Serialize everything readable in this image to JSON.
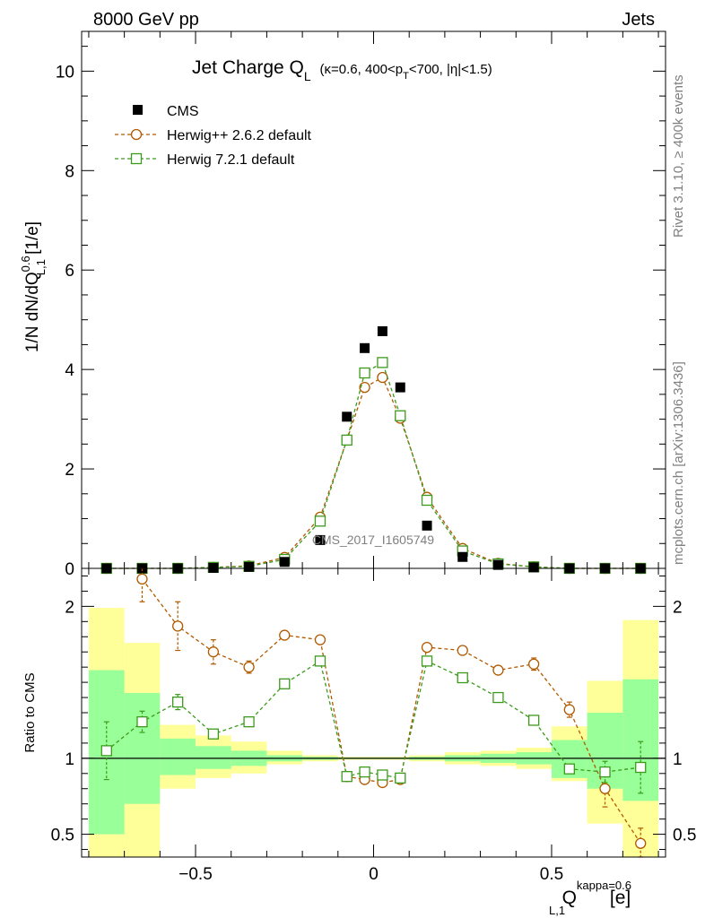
{
  "header": {
    "left_label": "8000 GeV pp",
    "right_label": "Jets"
  },
  "side_labels": {
    "rivet": "Rivet 3.1.10, ≥ 400k events",
    "mcplots": "mcplots.cern.ch [arXiv:1306.3436]"
  },
  "watermark": "CMS_2017_I1605749",
  "chart_data": [
    {
      "type": "scatter",
      "panel": "main",
      "title": "Jet Charge Q",
      "title_sub": "L",
      "title_detail_parts": [
        "(κ=0.6, 400<p",
        "T",
        "<700, |η|<1.5)"
      ],
      "ylabel_parts": [
        "1/N dN/dQ",
        "0.6",
        "L,1",
        " [1/e]"
      ],
      "xlim": [
        -0.82,
        0.82
      ],
      "ylim": [
        0,
        10.8
      ],
      "yticks": [
        0,
        2,
        4,
        6,
        8,
        10
      ],
      "ytick_labels": [
        "0",
        "2",
        "4",
        "6",
        "8",
        "10"
      ],
      "x": [
        -0.75,
        -0.65,
        -0.55,
        -0.45,
        -0.35,
        -0.25,
        -0.15,
        -0.075,
        -0.025,
        0.025,
        0.075,
        0.15,
        0.25,
        0.35,
        0.45,
        0.55,
        0.65,
        0.75
      ],
      "series": [
        {
          "name": "CMS",
          "marker": "filled-square",
          "color": "#000000",
          "values": [
            0.0,
            0.0,
            0.0,
            0.01,
            0.03,
            0.13,
            0.57,
            3.05,
            4.43,
            4.77,
            3.64,
            0.86,
            0.23,
            0.07,
            0.02,
            0.0,
            0.0,
            0.0
          ]
        },
        {
          "name": "Herwig++ 2.6.2 default",
          "marker": "open-circle",
          "color": "#b05a00",
          "line": "dashed",
          "values": [
            0.0,
            0.0,
            0.0,
            0.02,
            0.05,
            0.22,
            1.03,
            2.58,
            3.64,
            3.84,
            3.02,
            1.43,
            0.4,
            0.1,
            0.03,
            0.0,
            0.0,
            0.0
          ]
        },
        {
          "name": "Herwig 7.2.1 default",
          "marker": "open-square",
          "color": "#3c9a1c",
          "line": "dashed",
          "values": [
            0.0,
            0.0,
            0.0,
            0.02,
            0.04,
            0.18,
            0.95,
            2.58,
            3.93,
            4.14,
            3.07,
            1.37,
            0.35,
            0.09,
            0.03,
            0.0,
            0.0,
            0.0
          ]
        }
      ]
    },
    {
      "type": "scatter",
      "panel": "ratio",
      "ylabel": "Ratio to CMS",
      "xlabel_parts": [
        "Q",
        "kappa=0.6",
        "L,1",
        " [e]"
      ],
      "xlim": [
        -0.82,
        0.82
      ],
      "ylim": [
        0.35,
        2.25
      ],
      "yticks": [
        0.5,
        1,
        2
      ],
      "ytick_labels": [
        "0.5",
        "1",
        "2"
      ],
      "xticks": [
        -0.5,
        0,
        0.5
      ],
      "xtick_labels": [
        "−0.5",
        "0",
        "0.5"
      ],
      "bin_edges": [
        -0.8,
        -0.7,
        -0.6,
        -0.5,
        -0.4,
        -0.3,
        -0.2,
        -0.1,
        -0.05,
        0.0,
        0.05,
        0.1,
        0.2,
        0.3,
        0.4,
        0.5,
        0.6,
        0.7,
        0.8
      ],
      "band_green": [
        [
          0.5,
          1.58
        ],
        [
          0.7,
          1.43
        ],
        [
          0.89,
          1.13
        ],
        [
          0.93,
          1.08
        ],
        [
          0.95,
          1.05
        ],
        [
          0.98,
          1.02
        ],
        [
          0.99,
          1.01
        ],
        [
          0.995,
          1.005
        ],
        [
          0.995,
          1.005
        ],
        [
          0.995,
          1.005
        ],
        [
          0.995,
          1.005
        ],
        [
          0.99,
          1.01
        ],
        [
          0.98,
          1.02
        ],
        [
          0.97,
          1.03
        ],
        [
          0.96,
          1.04
        ],
        [
          0.87,
          1.12
        ],
        [
          0.8,
          1.3
        ],
        [
          0.72,
          1.52
        ]
      ],
      "band_yellow": [
        [
          0.35,
          1.99
        ],
        [
          0.35,
          1.76
        ],
        [
          0.8,
          1.22
        ],
        [
          0.87,
          1.15
        ],
        [
          0.9,
          1.11
        ],
        [
          0.96,
          1.05
        ],
        [
          0.98,
          1.02
        ],
        [
          0.99,
          1.01
        ],
        [
          0.99,
          1.01
        ],
        [
          0.99,
          1.01
        ],
        [
          0.99,
          1.01
        ],
        [
          0.98,
          1.02
        ],
        [
          0.96,
          1.04
        ],
        [
          0.95,
          1.05
        ],
        [
          0.93,
          1.07
        ],
        [
          0.85,
          1.21
        ],
        [
          0.57,
          1.51
        ],
        [
          0.35,
          1.91
        ]
      ],
      "x": [
        -0.75,
        -0.65,
        -0.55,
        -0.45,
        -0.35,
        -0.25,
        -0.15,
        -0.075,
        -0.025,
        0.025,
        0.075,
        0.15,
        0.25,
        0.35,
        0.45,
        0.55,
        0.65,
        0.75
      ],
      "series": [
        {
          "name": "Herwig++ 2.6.2 default",
          "marker": "open-circle",
          "color": "#b05a00",
          "line": "dashed",
          "values": [
            null,
            2.18,
            1.87,
            1.7,
            1.6,
            1.81,
            1.78,
            0.88,
            0.86,
            0.84,
            0.86,
            1.73,
            1.71,
            1.58,
            1.62,
            1.32,
            0.8,
            0.44
          ],
          "err_low": [
            null,
            0.15,
            0.16,
            0.08,
            0.04,
            0.02,
            0.02,
            0.0,
            0.0,
            0.0,
            0.0,
            0.02,
            0.02,
            0.02,
            0.04,
            0.05,
            0.12,
            0.1
          ],
          "err_high": [
            null,
            0.15,
            0.16,
            0.08,
            0.04,
            0.02,
            0.02,
            0.0,
            0.0,
            0.0,
            0.0,
            0.02,
            0.02,
            0.02,
            0.04,
            0.05,
            0.12,
            0.1
          ]
        },
        {
          "name": "Herwig 7.2.1 default",
          "marker": "open-square",
          "color": "#3c9a1c",
          "line": "dashed",
          "values": [
            1.05,
            1.24,
            1.37,
            1.16,
            1.24,
            1.49,
            1.64,
            0.88,
            0.91,
            0.89,
            0.87,
            1.64,
            1.53,
            1.4,
            1.25,
            0.93,
            0.91,
            0.94
          ],
          "err_low": [
            0.19,
            0.07,
            0.05,
            0.03,
            0.02,
            0.01,
            0.01,
            0.0,
            0.0,
            0.0,
            0.0,
            0.01,
            0.01,
            0.01,
            0.02,
            0.02,
            0.07,
            0.17
          ],
          "err_high": [
            0.19,
            0.07,
            0.05,
            0.03,
            0.02,
            0.01,
            0.01,
            0.0,
            0.0,
            0.0,
            0.0,
            0.01,
            0.01,
            0.01,
            0.02,
            0.02,
            0.07,
            0.17
          ]
        }
      ]
    }
  ]
}
